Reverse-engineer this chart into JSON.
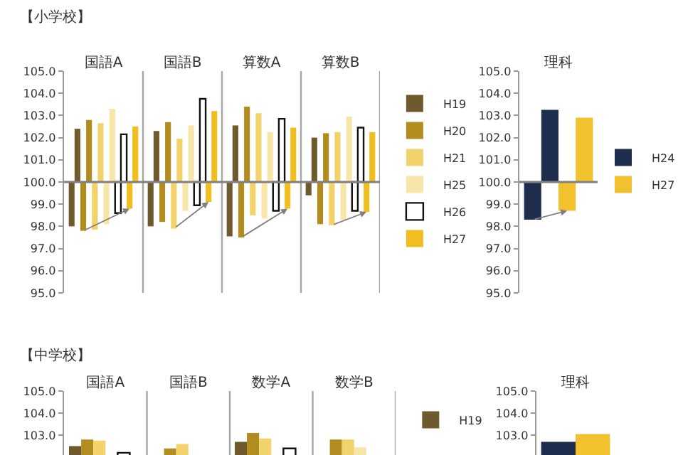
{
  "chart_data": [
    {
      "type": "bar",
      "title": "【小学校】",
      "categories": [
        "国語A",
        "国語B",
        "算数A",
        "算数B"
      ],
      "ylim": [
        95,
        105
      ],
      "yticks": [
        {
          "value": 95,
          "label": "95.0"
        },
        {
          "value": 96,
          "label": "96.0"
        },
        {
          "value": 97,
          "label": "97.0"
        },
        {
          "value": 98,
          "label": "98.0"
        },
        {
          "value": 99,
          "label": "99.0"
        },
        {
          "value": 100,
          "label": "100.0"
        },
        {
          "value": 101,
          "label": "101.0"
        },
        {
          "value": 102,
          "label": "102.0"
        },
        {
          "value": 103,
          "label": "103.0"
        },
        {
          "value": 104,
          "label": "104.0"
        },
        {
          "value": 105,
          "label": "105.0"
        }
      ],
      "grid": "x",
      "legend": "right",
      "ref_lines": [
        {
          "axis": "y",
          "value": 100,
          "color": "#808080"
        }
      ],
      "series": [
        {
          "color": "#6e5a2c",
          "base": [
            100,
            100,
            100,
            100
          ],
          "values": [
            -2.0,
            -2.0,
            -2.45,
            -0.6
          ]
        },
        {
          "name": "H19",
          "color": "#6e5a2c",
          "base": [
            100,
            100,
            100,
            100
          ],
          "values": [
            2.4,
            2.3,
            2.55,
            2.0
          ]
        },
        {
          "color": "#b08d1e",
          "base": [
            100,
            100,
            100,
            100
          ],
          "values": [
            -2.2,
            -1.8,
            -2.5,
            -1.9
          ]
        },
        {
          "name": "H20",
          "color": "#b08d1e",
          "base": [
            100,
            100,
            100,
            100
          ],
          "values": [
            2.8,
            2.7,
            3.4,
            2.2
          ]
        },
        {
          "color": "#f2d36b",
          "base": [
            100,
            100,
            100,
            100
          ],
          "values": [
            -2.15,
            -2.1,
            -1.5,
            -1.95
          ]
        },
        {
          "name": "H21",
          "color": "#f2d36b",
          "base": [
            100,
            100,
            100,
            100
          ],
          "values": [
            2.65,
            1.95,
            3.1,
            2.25
          ]
        },
        {
          "color": "#f8e6a8",
          "base": [
            100,
            100,
            100,
            100
          ],
          "values": [
            -1.9,
            -1.3,
            -1.65,
            -1.7
          ]
        },
        {
          "name": "H25",
          "color": "#f8e6a8",
          "base": [
            100,
            100,
            100,
            100
          ],
          "values": [
            3.3,
            2.55,
            2.25,
            2.95
          ]
        },
        {
          "color": "#ffffff",
          "base": [
            100,
            100,
            100,
            100
          ],
          "values": [
            -1.4,
            -1.05,
            -1.3,
            -1.3
          ]
        },
        {
          "name": "H26",
          "color": "#ffffff",
          "base": [
            100,
            100,
            100,
            100
          ],
          "values": [
            2.15,
            3.75,
            2.85,
            2.45
          ]
        },
        {
          "color": "#f0be1e",
          "base": [
            100,
            100,
            100,
            100
          ],
          "values": [
            -1.2,
            -0.9,
            -1.2,
            -1.35
          ]
        },
        {
          "name": "H27",
          "color": "#f0be1e",
          "base": [
            100,
            100,
            100,
            100
          ],
          "values": [
            2.5,
            3.2,
            2.45,
            2.25
          ]
        }
      ]
    },
    {
      "type": "bar",
      "categories": [
        "理科"
      ],
      "ylim": [
        95,
        105
      ],
      "yticks": [
        {
          "value": 95,
          "label": "95.0"
        },
        {
          "value": 96,
          "label": "96.0"
        },
        {
          "value": 97,
          "label": "97.0"
        },
        {
          "value": 98,
          "label": "98.0"
        },
        {
          "value": 99,
          "label": "99.0"
        },
        {
          "value": 100,
          "label": "100.0"
        },
        {
          "value": 101,
          "label": "101.0"
        },
        {
          "value": 102,
          "label": "102.0"
        },
        {
          "value": 103,
          "label": "103.0"
        },
        {
          "value": 104,
          "label": "104.0"
        },
        {
          "value": 105,
          "label": "105.0"
        }
      ],
      "legend": "right",
      "ref_lines": [
        {
          "axis": "y",
          "value": 100,
          "color": "#808080"
        }
      ],
      "series": [
        {
          "color": "#1f2d4e",
          "base": [
            100
          ],
          "values": [
            -1.7
          ]
        },
        {
          "name": "H24",
          "color": "#1f2d4e",
          "base": [
            100
          ],
          "values": [
            3.25
          ]
        },
        {
          "color": "#f2c12e",
          "base": [
            100
          ],
          "values": [
            -1.3
          ]
        },
        {
          "name": "H27",
          "color": "#f2c12e",
          "base": [
            100
          ],
          "values": [
            2.9
          ]
        }
      ]
    },
    {
      "type": "bar",
      "title": "【中学校】",
      "categories": [
        "国語A",
        "国語B",
        "数学A",
        "数学B"
      ],
      "ylim": [
        102.1,
        105
      ],
      "yticks": [
        {
          "value": 103,
          "label": "103.0"
        },
        {
          "value": 104,
          "label": "104.0"
        },
        {
          "value": 105,
          "label": "105.0"
        }
      ],
      "grid": "x",
      "legend": "right",
      "series": [
        {
          "name": "H19",
          "color": "#6e5a2c",
          "values": [
            102.5,
            null,
            102.7,
            null
          ]
        },
        {
          "color": "#b08d1e",
          "values": [
            102.8,
            102.4,
            103.1,
            102.8
          ]
        },
        {
          "color": "#f2d36b",
          "values": [
            102.75,
            102.6,
            102.85,
            102.8
          ]
        },
        {
          "color": "#f8e6a8",
          "values": [
            null,
            null,
            null,
            102.45
          ]
        },
        {
          "color": "#ffffff",
          "values": [
            102.2,
            null,
            102.4,
            null
          ]
        },
        {
          "color": "#f0be1e",
          "values": [
            null,
            null,
            null,
            null
          ]
        }
      ]
    },
    {
      "type": "bar",
      "categories": [
        "理科"
      ],
      "ylim": [
        102.1,
        105
      ],
      "yticks": [
        {
          "value": 103,
          "label": "103.0"
        },
        {
          "value": 104,
          "label": "104.0"
        },
        {
          "value": 105,
          "label": "105.0"
        }
      ],
      "series": [
        {
          "color": "#1f2d4e",
          "values": [
            102.7
          ]
        },
        {
          "color": "#f2c12e",
          "values": [
            103.05
          ]
        }
      ]
    }
  ]
}
